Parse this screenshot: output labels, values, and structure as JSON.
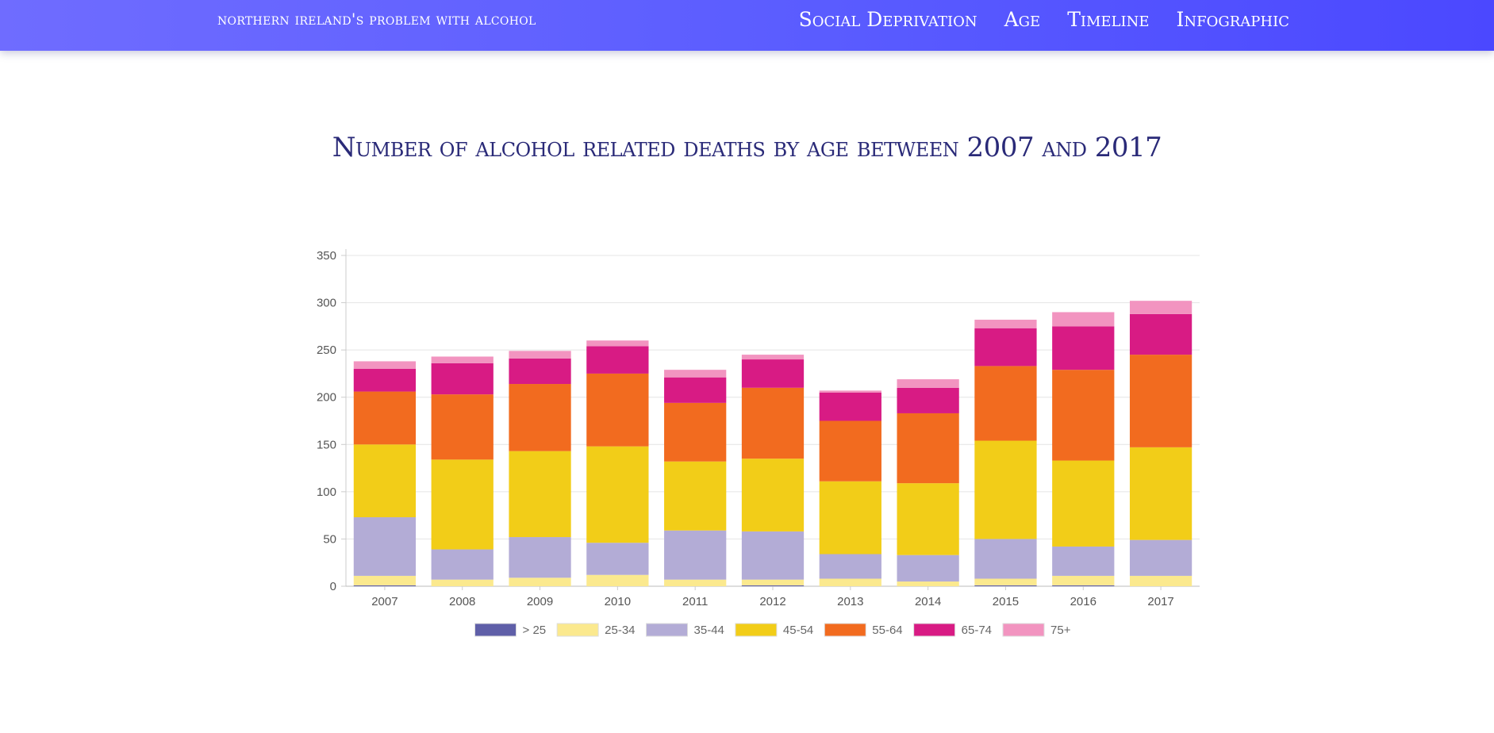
{
  "nav": {
    "brand": "northern ireland's problem with alcohol",
    "links": [
      "Social Deprivation",
      "Age",
      "Timeline",
      "Infographic"
    ]
  },
  "chart_data": {
    "type": "bar",
    "stacked": true,
    "title": "Number of alcohol related deaths by age between 2007 and 2017",
    "xlabel": "",
    "ylabel": "",
    "ylim": [
      0,
      350
    ],
    "yticks": [
      0,
      50,
      100,
      150,
      200,
      250,
      300,
      350
    ],
    "grid": true,
    "legend_position": "bottom",
    "categories": [
      "2007",
      "2008",
      "2009",
      "2010",
      "2011",
      "2012",
      "2013",
      "2014",
      "2015",
      "2016",
      "2017"
    ],
    "series": [
      {
        "name": "> 25",
        "color": "#5f5fa8",
        "values": [
          1,
          0,
          0,
          0,
          0,
          1,
          0,
          0,
          1,
          1,
          0
        ]
      },
      {
        "name": "25-34",
        "color": "#fbe98e",
        "values": [
          10,
          7,
          9,
          12,
          7,
          6,
          8,
          5,
          7,
          10,
          11
        ]
      },
      {
        "name": "35-44",
        "color": "#b3acd6",
        "values": [
          62,
          32,
          43,
          34,
          52,
          51,
          26,
          28,
          42,
          31,
          38
        ]
      },
      {
        "name": "45-54",
        "color": "#f2cd18",
        "values": [
          77,
          95,
          91,
          102,
          73,
          77,
          77,
          76,
          104,
          91,
          98
        ]
      },
      {
        "name": "55-64",
        "color": "#f26b1f",
        "values": [
          56,
          69,
          71,
          77,
          62,
          75,
          64,
          74,
          79,
          96,
          98
        ]
      },
      {
        "name": "65-74",
        "color": "#d81b84",
        "values": [
          24,
          33,
          27,
          29,
          27,
          30,
          30,
          27,
          40,
          46,
          43
        ]
      },
      {
        "name": "75+",
        "color": "#f294c0",
        "values": [
          8,
          7,
          8,
          6,
          8,
          5,
          2,
          9,
          9,
          15,
          14
        ]
      }
    ]
  }
}
